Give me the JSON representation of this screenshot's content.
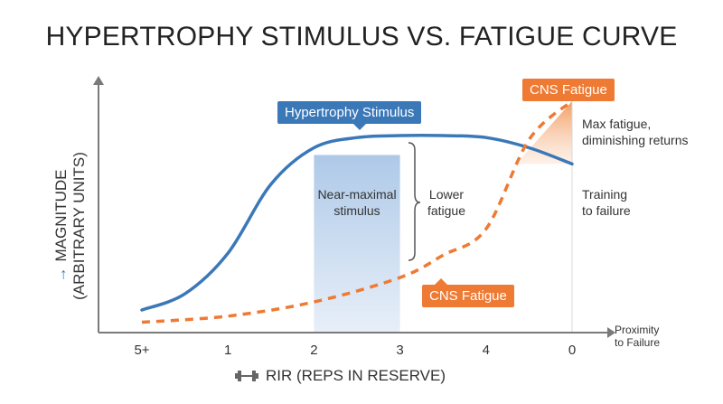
{
  "title": "HYPERTROPHY STIMULUS VS. FATIGUE CURVE",
  "chart_data": {
    "type": "line",
    "title": "HYPERTROPHY STIMULUS VS. FATIGUE CURVE",
    "ylabel_line1": "MAGNITUDE",
    "ylabel_line2": "(ARBITRARY UNITS)",
    "xlabel": "RIR (REPS IN RESERVE)",
    "x_end_label": "Proximity to Failure",
    "x_ticks": [
      "5+",
      "1",
      "2",
      "3",
      "4",
      "0"
    ],
    "series": [
      {
        "name": "Hypertrophy Stimulus",
        "color": "#3a78b8",
        "style": "solid",
        "points": [
          [
            0,
            0.08
          ],
          [
            0.5,
            0.16
          ],
          [
            1,
            0.36
          ],
          [
            1.5,
            0.7
          ],
          [
            2,
            0.88
          ],
          [
            2.5,
            0.93
          ],
          [
            3,
            0.94
          ],
          [
            3.5,
            0.94
          ],
          [
            4,
            0.93
          ],
          [
            4.5,
            0.88
          ],
          [
            5,
            0.8
          ]
        ]
      },
      {
        "name": "CNS Fatigue",
        "color": "#ee7a33",
        "style": "dashed",
        "points": [
          [
            0,
            0.02
          ],
          [
            1,
            0.05
          ],
          [
            2,
            0.12
          ],
          [
            3,
            0.24
          ],
          [
            3.5,
            0.35
          ],
          [
            4,
            0.48
          ],
          [
            4.5,
            0.92
          ],
          [
            5,
            1.11
          ]
        ]
      }
    ],
    "highlight_band": {
      "from": 2,
      "to": 3,
      "label": "Near-maximal stimulus"
    },
    "annotations": {
      "lower_fatigue": "Lower fatigue",
      "max_fatigue": "Max fatigue, diminishing returns",
      "training_failure": "Training to failure"
    },
    "ylim": [
      0,
      1.25
    ],
    "xlim": [
      -0.4,
      5.4
    ],
    "grid": false
  },
  "labels": {
    "hypertrophy_tag": "Hypertrophy Stimulus",
    "cns_tag_top": "CNS Fatigue",
    "cns_tag_mid": "CNS Fatigue",
    "band_line1": "Near-maximal",
    "band_line2": "stimulus",
    "lower_line1": "Lower",
    "lower_line2": "fatigue",
    "max_line1": "Max fatigue,",
    "max_line2": "diminishing returns",
    "failure_line1": "Training",
    "failure_line2": "to failure",
    "prox_line1": "Proximity",
    "prox_line2": "to Failure",
    "ylabel_arrow": "→"
  },
  "colors": {
    "stimulus": "#3a78b8",
    "fatigue": "#ee7a33",
    "band": "#bcd1ea",
    "axis": "#7a7a7a"
  },
  "icons": {
    "x_axis": "dumbbell-icon"
  }
}
